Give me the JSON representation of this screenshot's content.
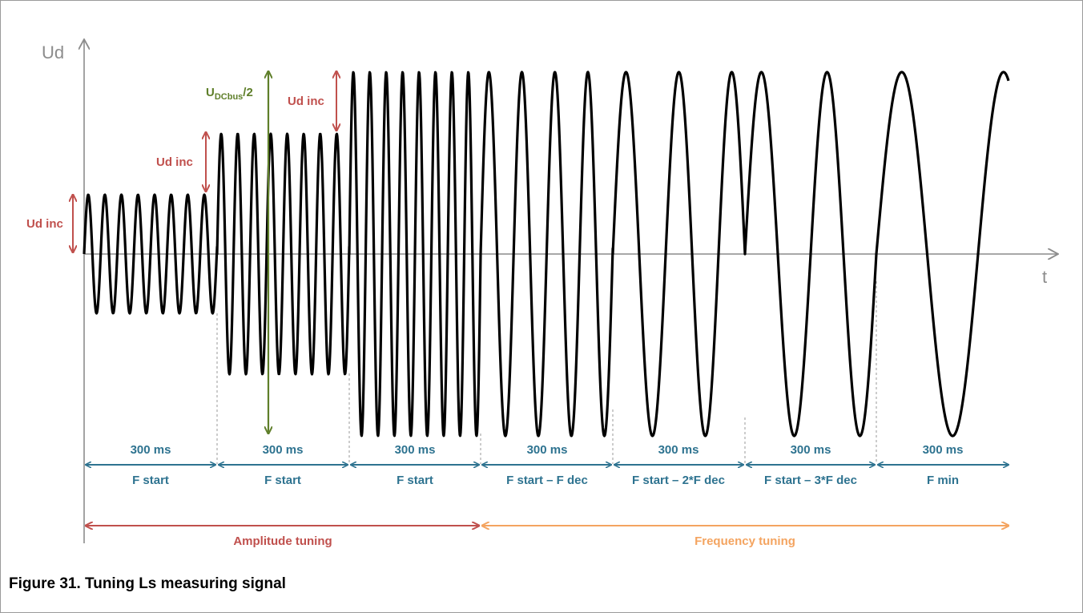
{
  "figure": {
    "caption": "Figure 31.  Tuning Ls measuring signal"
  },
  "axes": {
    "y_label": "Ud",
    "x_label": "t"
  },
  "annotations": {
    "ud_inc_1": "Ud inc",
    "ud_inc_2": "Ud inc",
    "ud_inc_3": "Ud inc",
    "udcbus_main": "U",
    "udcbus_sub": "DCbus",
    "udcbus_tail": "/2"
  },
  "segments": [
    {
      "duration": "300 ms",
      "frequency": "F start"
    },
    {
      "duration": "300 ms",
      "frequency": "F start"
    },
    {
      "duration": "300 ms",
      "frequency": "F start"
    },
    {
      "duration": "300 ms",
      "frequency": "F start – F dec"
    },
    {
      "duration": "300 ms",
      "frequency": "F start – 2*F dec"
    },
    {
      "duration": "300 ms",
      "frequency": "F start – 3*F dec"
    },
    {
      "duration": "300 ms",
      "frequency": "F min"
    }
  ],
  "phases": {
    "amplitude": "Amplitude tuning",
    "frequency": "Frequency tuning"
  },
  "colors": {
    "signal": "#000000",
    "teal": "#2e7390",
    "red": "#c0504d",
    "green": "#5f7f2a",
    "orange": "#f4a460",
    "axis": "#8c8c8c"
  }
}
